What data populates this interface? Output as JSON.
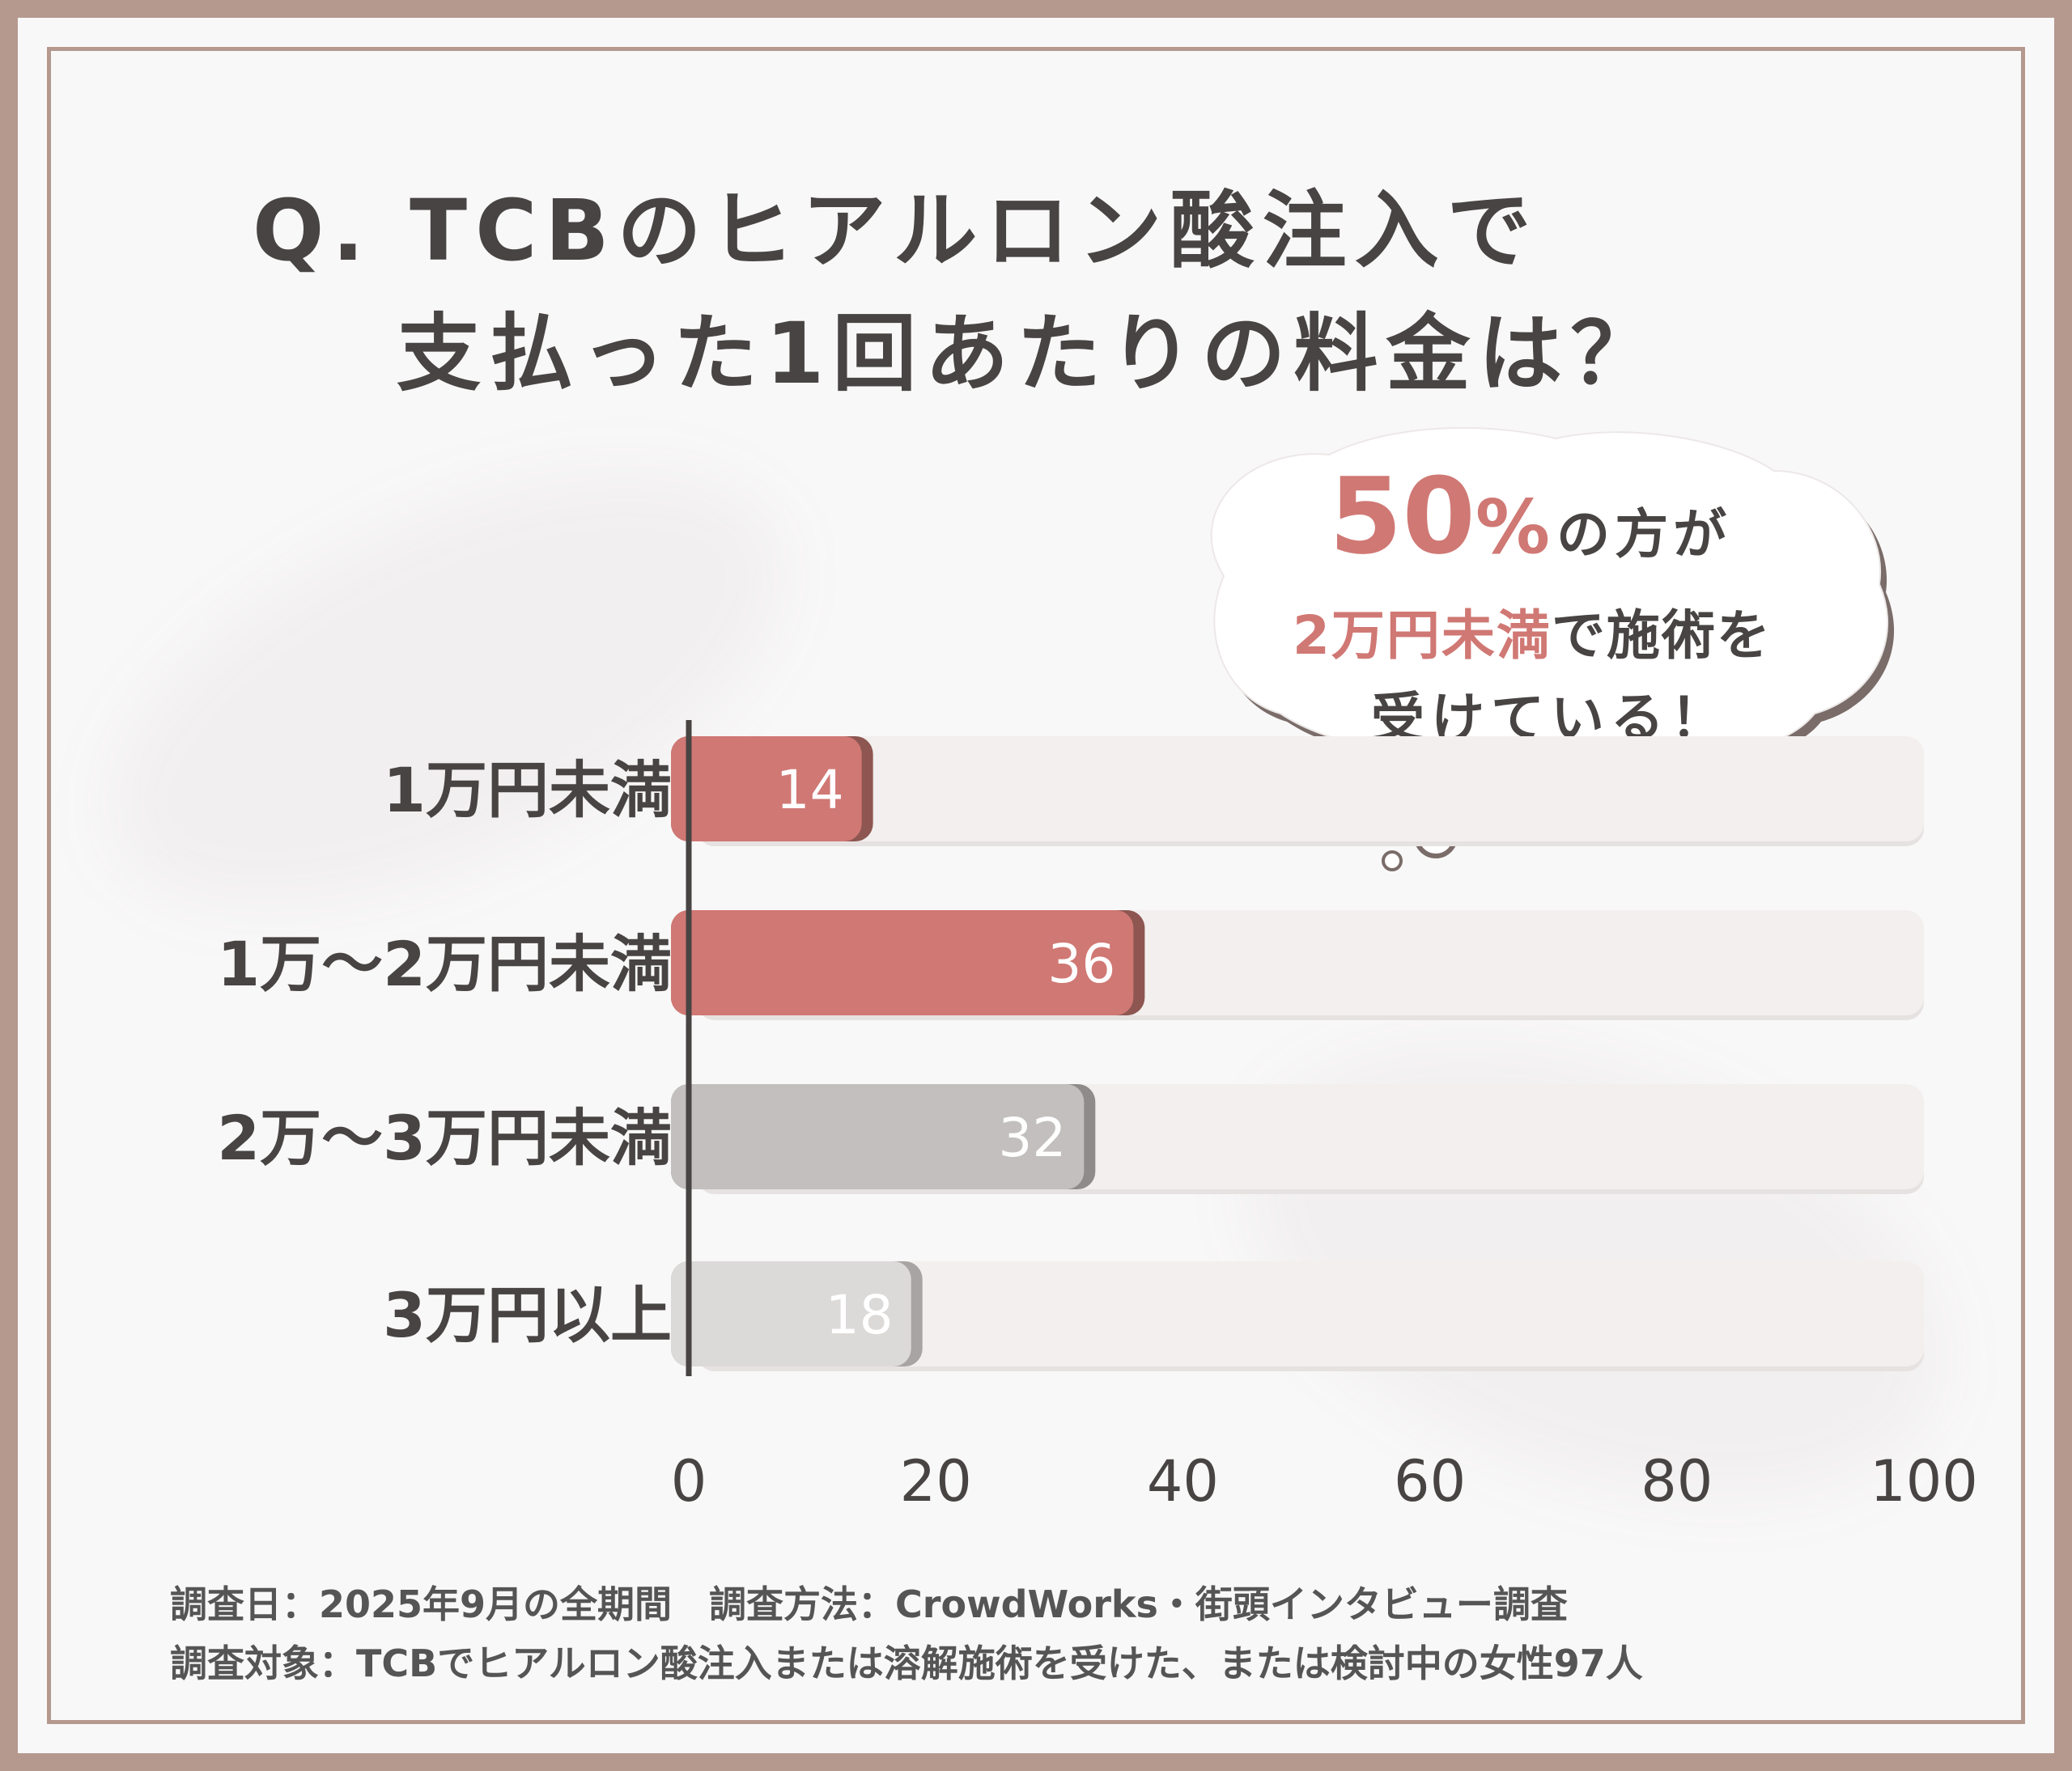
{
  "title_line1": "Q. TCBのヒアルロン酸注入で",
  "title_line2": "支払った1回あたりの料金は？",
  "callout": {
    "big": "50",
    "pct": "%",
    "line1_rest": "の方が",
    "line2_highlight": "2万円未満",
    "line2_rest": "で施術を",
    "line3": "受けている！"
  },
  "footnote_line1": "調査日：2025年9月の全期間　調査方法：CrowdWorks・街頭インタビュー調査",
  "footnote_line2": "調査対象：TCBでヒアルロン酸注入または溶解施術を受けた、または検討中の女性97人",
  "colors": {
    "accent": "#d07874",
    "accent_shadow": "#8e5651",
    "gray_dark": "#c2bfbe",
    "gray_light": "#dcdad9",
    "track": "#f2efee",
    "frame": "#b5998f",
    "text": "#474443"
  },
  "chart_data": {
    "type": "bar",
    "orientation": "horizontal",
    "categories": [
      "1万円未満",
      "1万～2万円未満",
      "2万～3万円未満",
      "3万円以上"
    ],
    "values": [
      14,
      36,
      32,
      18
    ],
    "xlim": [
      0,
      100
    ],
    "xticks": [
      0,
      20,
      40,
      60,
      80,
      100
    ],
    "grid": false,
    "legend": "none"
  }
}
